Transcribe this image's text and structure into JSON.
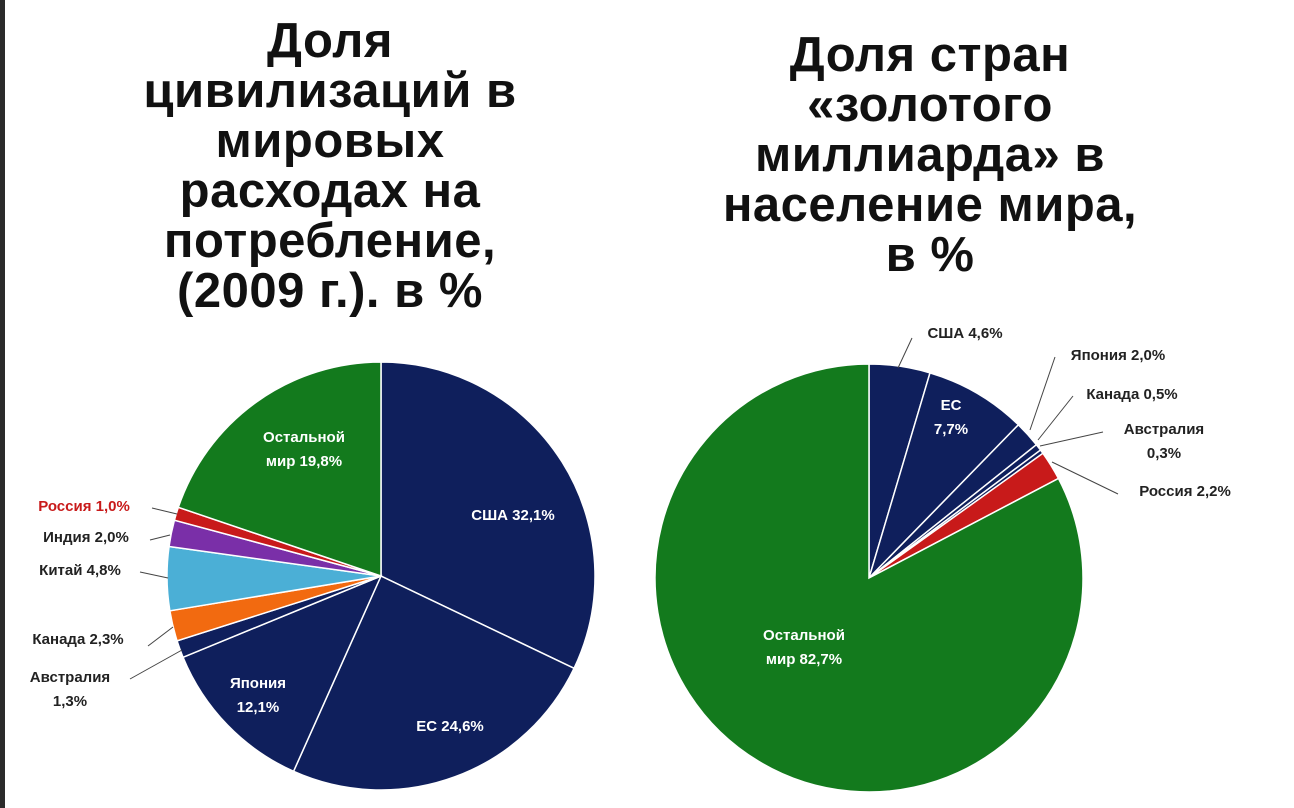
{
  "chart_data": [
    {
      "type": "pie",
      "title_lines": [
        "Доля",
        "цивилизаций в",
        "мировых",
        "расходах на",
        "потребление,",
        "(2009 г.). в %"
      ],
      "slices": [
        {
          "name": "США",
          "value": 32.1,
          "label_lines": [
            "США 32,1%"
          ],
          "color": "#0f1f5c",
          "label_color": "#ffffff"
        },
        {
          "name": "ЕС",
          "value": 24.6,
          "label_lines": [
            "ЕС 24,6%"
          ],
          "color": "#0f1f5c",
          "label_color": "#ffffff"
        },
        {
          "name": "Япония",
          "value": 12.1,
          "label_lines": [
            "Япония",
            "12,1%"
          ],
          "color": "#0f1f5c",
          "label_color": "#ffffff"
        },
        {
          "name": "Австралия",
          "value": 1.3,
          "label_lines": [
            "Австралия",
            "1,3%"
          ],
          "color": "#0f1f5c",
          "label_color": "#222222"
        },
        {
          "name": "Канада",
          "value": 2.3,
          "label_lines": [
            "Канада 2,3%"
          ],
          "color": "#f26a10",
          "label_color": "#222222"
        },
        {
          "name": "Китай",
          "value": 4.8,
          "label_lines": [
            "Китай 4,8%"
          ],
          "color": "#4bafd6",
          "label_color": "#222222"
        },
        {
          "name": "Индия",
          "value": 2.0,
          "label_lines": [
            "Индия 2,0%"
          ],
          "color": "#7a2fa8",
          "label_color": "#222222"
        },
        {
          "name": "Россия",
          "value": 1.0,
          "label_lines": [
            "Россия 1,0%"
          ],
          "color": "#c81a1a",
          "label_color": "#c81a1a"
        },
        {
          "name": "Остальной мир",
          "value": 19.8,
          "label_lines": [
            "Остальной",
            "мир 19,8%"
          ],
          "color": "#137a1d",
          "label_color": "#ffffff"
        }
      ]
    },
    {
      "type": "pie",
      "title_lines": [
        "Доля стран",
        "«золотого",
        "миллиарда» в",
        "население мира,",
        "в %"
      ],
      "slices": [
        {
          "name": "США",
          "value": 4.6,
          "label_lines": [
            "США 4,6%"
          ],
          "color": "#0f1f5c",
          "label_color": "#222222"
        },
        {
          "name": "ЕС",
          "value": 7.7,
          "label_lines": [
            "ЕС",
            "7,7%"
          ],
          "color": "#0f1f5c",
          "label_color": "#ffffff"
        },
        {
          "name": "Япония",
          "value": 2.0,
          "label_lines": [
            "Япония 2,0%"
          ],
          "color": "#0f1f5c",
          "label_color": "#222222"
        },
        {
          "name": "Канада",
          "value": 0.5,
          "label_lines": [
            "Канада 0,5%"
          ],
          "color": "#0f1f5c",
          "label_color": "#222222"
        },
        {
          "name": "Австралия",
          "value": 0.3,
          "label_lines": [
            "Австралия",
            "0,3%"
          ],
          "color": "#0f1f5c",
          "label_color": "#222222"
        },
        {
          "name": "Россия",
          "value": 2.2,
          "label_lines": [
            "Россия 2,2%"
          ],
          "color": "#c81a1a",
          "label_color": "#222222"
        },
        {
          "name": "Остальной мир",
          "value": 82.7,
          "label_lines": [
            "Остальной",
            "мир 82,7%"
          ],
          "color": "#137a1d",
          "label_color": "#ffffff"
        }
      ]
    }
  ]
}
